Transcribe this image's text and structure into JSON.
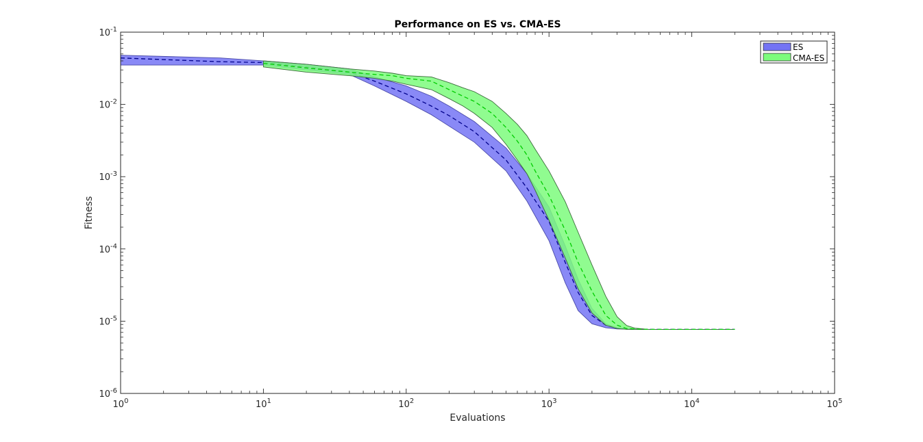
{
  "chart_data": {
    "type": "area",
    "title": "Performance on ES vs. CMA-ES",
    "xlabel": "Evaluations",
    "ylabel": "Fitness",
    "xscale": "log",
    "yscale": "log",
    "xlim": [
      1,
      100000
    ],
    "ylim": [
      1e-06,
      0.1
    ],
    "grid": false,
    "legend_position": "top-right",
    "x_ticks": [
      {
        "value": 1,
        "base": "10",
        "exp": "0"
      },
      {
        "value": 10,
        "base": "10",
        "exp": "1"
      },
      {
        "value": 100,
        "base": "10",
        "exp": "2"
      },
      {
        "value": 1000,
        "base": "10",
        "exp": "3"
      },
      {
        "value": 10000,
        "base": "10",
        "exp": "4"
      },
      {
        "value": 100000,
        "base": "10",
        "exp": "5"
      }
    ],
    "y_ticks": [
      {
        "value": 0.1,
        "base": "10",
        "exp": "-1"
      },
      {
        "value": 0.01,
        "base": "10",
        "exp": "-2"
      },
      {
        "value": 0.001,
        "base": "10",
        "exp": "-3"
      },
      {
        "value": 0.0001,
        "base": "10",
        "exp": "-4"
      },
      {
        "value": 1e-05,
        "base": "10",
        "exp": "-5"
      },
      {
        "value": 1e-06,
        "base": "10",
        "exp": "-6"
      }
    ],
    "series": [
      {
        "name": "ES",
        "fill_color": "#7474f4",
        "edge_color": "#4a4aa8",
        "line_color": "#00008b",
        "x": [
          1,
          5,
          10,
          20,
          40,
          60,
          100,
          150,
          200,
          300,
          500,
          700,
          1000,
          1300,
          1600,
          2000,
          2500,
          3000,
          4000,
          5000,
          10000,
          20000
        ],
        "upper": [
          0.048,
          0.044,
          0.04,
          0.036,
          0.031,
          0.024,
          0.018,
          0.013,
          0.0095,
          0.0058,
          0.0025,
          0.0011,
          0.00038,
          0.00011,
          3.8e-05,
          1.5e-05,
          9.2e-06,
          8.1e-06,
          7.8e-06,
          7.7e-06,
          7.7e-06,
          7.7e-06
        ],
        "mean": [
          0.044,
          0.039,
          0.038,
          0.033,
          0.028,
          0.021,
          0.014,
          0.0095,
          0.007,
          0.0042,
          0.0017,
          0.0007,
          0.00024,
          6.5e-05,
          2.5e-05,
          1.2e-05,
          8.8e-06,
          8e-06,
          7.8e-06,
          7.7e-06,
          7.7e-06,
          7.7e-06
        ],
        "lower": [
          0.035,
          0.035,
          0.035,
          0.03,
          0.026,
          0.018,
          0.011,
          0.0072,
          0.005,
          0.003,
          0.0012,
          0.00046,
          0.00013,
          3.4e-05,
          1.4e-05,
          9.2e-06,
          8.1e-06,
          7.8e-06,
          7.7e-06,
          7.7e-06,
          7.7e-06,
          7.7e-06
        ]
      },
      {
        "name": "CMA-ES",
        "fill_color": "#7cfc7c",
        "edge_color": "#3a6a3a",
        "line_color": "#00cc00",
        "x": [
          10,
          20,
          40,
          60,
          80,
          100,
          150,
          200,
          250,
          300,
          400,
          500,
          600,
          700,
          800,
          1000,
          1300,
          1600,
          2000,
          2500,
          3000,
          3500,
          4000,
          5000,
          10000,
          20000
        ],
        "upper": [
          0.04,
          0.036,
          0.031,
          0.029,
          0.027,
          0.025,
          0.024,
          0.02,
          0.017,
          0.015,
          0.011,
          0.0075,
          0.0053,
          0.0037,
          0.0024,
          0.0012,
          0.00045,
          0.00017,
          6e-05,
          2.2e-05,
          1.15e-05,
          8.7e-06,
          8e-06,
          7.7e-06,
          7.7e-06,
          7.7e-06
        ],
        "mean": [
          0.037,
          0.032,
          0.028,
          0.026,
          0.025,
          0.023,
          0.021,
          0.016,
          0.013,
          0.011,
          0.0075,
          0.0048,
          0.0031,
          0.002,
          0.0012,
          0.00055,
          0.00018,
          6.5e-05,
          2.6e-05,
          1.2e-05,
          8.8e-06,
          7.9e-06,
          7.8e-06,
          7.7e-06,
          7.7e-06,
          7.7e-06
        ],
        "lower": [
          0.033,
          0.028,
          0.025,
          0.023,
          0.021,
          0.019,
          0.016,
          0.012,
          0.0095,
          0.0075,
          0.0048,
          0.0028,
          0.0017,
          0.0011,
          0.00065,
          0.00025,
          7.5e-05,
          2.8e-05,
          1.3e-05,
          8.8e-06,
          7.9e-06,
          7.7e-06,
          7.7e-06,
          7.7e-06,
          7.7e-06,
          7.7e-06
        ]
      }
    ]
  }
}
